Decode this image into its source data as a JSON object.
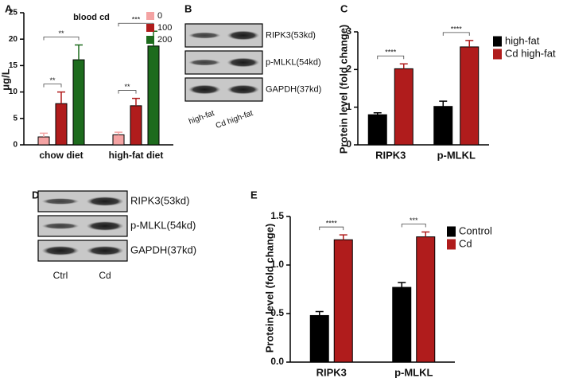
{
  "chart_data": [
    {
      "type": "bar",
      "panel": "A",
      "title": "blood cd",
      "y_label": "μg/L",
      "categories": [
        "chow diet",
        "high-fat diet"
      ],
      "series": [
        {
          "name": "0",
          "color": "#f4a3a3",
          "values": [
            1.5,
            1.9
          ],
          "errors": [
            0.7,
            0.5
          ]
        },
        {
          "name": "100",
          "color": "#b01c1c",
          "values": [
            7.8,
            7.4
          ],
          "errors": [
            2.2,
            1.4
          ]
        },
        {
          "name": "200",
          "color": "#1d6b1d",
          "values": [
            16.1,
            18.7
          ],
          "errors": [
            2.8,
            2.8
          ]
        }
      ],
      "ylim": [
        0,
        25
      ],
      "yticks": [
        0,
        5,
        10,
        15,
        20,
        25
      ],
      "legend": "upper right",
      "annotations": [
        [
          "**",
          "**"
        ],
        [
          "**",
          "***"
        ]
      ]
    },
    {
      "type": "bar",
      "panel": "C",
      "y_label": "Protein level (fold change)",
      "categories": [
        "RIPK3",
        "p-MLKL"
      ],
      "series": [
        {
          "name": "high-fat",
          "color": "#000000",
          "values": [
            0.8,
            1.02
          ],
          "errors": [
            0.05,
            0.14
          ]
        },
        {
          "name": "Cd high-fat",
          "color": "#b01c1c",
          "values": [
            2.02,
            2.6
          ],
          "errors": [
            0.13,
            0.17
          ]
        }
      ],
      "ylim": [
        0,
        3
      ],
      "yticks": [
        0,
        1,
        2,
        3
      ],
      "legend": "upper right",
      "annotations": [
        [
          "****"
        ],
        [
          "****"
        ]
      ]
    },
    {
      "type": "bar",
      "panel": "E",
      "y_label": "Protein level (fold change)",
      "categories": [
        "RIPK3",
        "p-MLKL"
      ],
      "series": [
        {
          "name": "Control",
          "color": "#000000",
          "values": [
            0.48,
            0.77
          ],
          "errors": [
            0.04,
            0.05
          ]
        },
        {
          "name": "Cd",
          "color": "#b01c1c",
          "values": [
            1.26,
            1.29
          ],
          "errors": [
            0.05,
            0.05
          ]
        }
      ],
      "ylim": [
        0,
        1.5
      ],
      "yticks": [
        {
          "value": 0,
          "label": "0.0"
        },
        0.5,
        {
          "value": 1,
          "label": "1.0"
        },
        1.5
      ],
      "legend": "upper right",
      "annotations": [
        [
          "****"
        ],
        [
          "***"
        ]
      ]
    }
  ],
  "blots": [
    {
      "panel": "B",
      "rows": [
        "RIPK3(53kd)",
        "p-MLKL(54kd)",
        "GAPDH(37kd)"
      ],
      "lanes": [
        "high-fat",
        "Cd high-fat"
      ]
    },
    {
      "panel": "D",
      "rows": [
        "RIPK3(53kd)",
        "p-MLKL(54kd)",
        "GAPDH(37kd)"
      ],
      "lanes": [
        "Ctrl",
        "Cd"
      ]
    }
  ]
}
